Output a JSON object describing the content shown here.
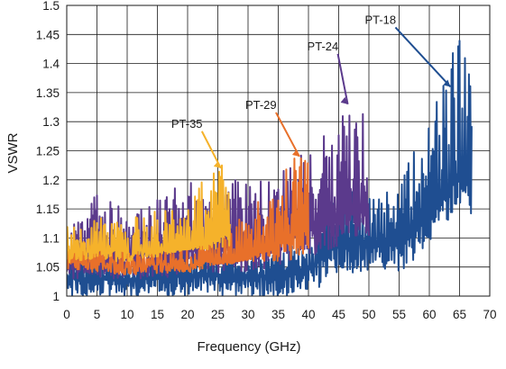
{
  "chart_data": {
    "type": "line",
    "title": "",
    "xlabel": "Frequency (GHz)",
    "ylabel": "VSWR",
    "xlim": [
      0,
      70
    ],
    "ylim": [
      1,
      1.5
    ],
    "x_ticks": [
      0,
      5,
      10,
      15,
      20,
      25,
      30,
      35,
      40,
      45,
      50,
      55,
      60,
      65,
      70
    ],
    "y_ticks": [
      1,
      1.05,
      1.1,
      1.15,
      1.2,
      1.25,
      1.3,
      1.35,
      1.4,
      1.45,
      1.5
    ],
    "y_tick_labels": [
      "1",
      "1.05",
      "1.1",
      "1.15",
      "1.2",
      "1.25",
      "1.3",
      "1.35",
      "1.4",
      "1.45",
      "1.5"
    ],
    "grid": true,
    "legend": "none",
    "series": [
      {
        "name": "PT-18",
        "color": "#1f4e91",
        "x_range": [
          0,
          67
        ],
        "vswr_min_approx": 1.0,
        "vswr_max_approx": 1.45,
        "sample_points": [
          [
            0,
            1.07
          ],
          [
            10,
            1.06
          ],
          [
            20,
            1.08
          ],
          [
            30,
            1.07
          ],
          [
            40,
            1.1
          ],
          [
            45,
            1.2
          ],
          [
            50,
            1.2
          ],
          [
            55,
            1.2
          ],
          [
            60,
            1.3
          ],
          [
            63,
            1.4
          ],
          [
            65,
            1.45
          ],
          [
            67,
            1.42
          ]
        ]
      },
      {
        "name": "PT-24",
        "color": "#5b3a8c",
        "x_range": [
          0,
          50
        ],
        "vswr_min_approx": 1.03,
        "vswr_max_approx": 1.35,
        "sample_points": [
          [
            0,
            1.12
          ],
          [
            5,
            1.18
          ],
          [
            10,
            1.15
          ],
          [
            20,
            1.2
          ],
          [
            30,
            1.2
          ],
          [
            40,
            1.25
          ],
          [
            45,
            1.3
          ],
          [
            47,
            1.34
          ],
          [
            49,
            1.32
          ]
        ]
      },
      {
        "name": "PT-29",
        "color": "#e8702a",
        "x_range": [
          0,
          40
        ],
        "vswr_min_approx": 1.06,
        "vswr_max_approx": 1.25,
        "sample_points": [
          [
            0,
            1.1
          ],
          [
            10,
            1.08
          ],
          [
            20,
            1.09
          ],
          [
            27,
            1.12
          ],
          [
            30,
            1.15
          ],
          [
            35,
            1.2
          ],
          [
            38,
            1.25
          ]
        ]
      },
      {
        "name": "PT-35",
        "color": "#f5b22b",
        "x_range": [
          0,
          27
        ],
        "vswr_min_approx": 1.08,
        "vswr_max_approx": 1.25,
        "sample_points": [
          [
            0,
            1.12
          ],
          [
            5,
            1.14
          ],
          [
            10,
            1.13
          ],
          [
            15,
            1.15
          ],
          [
            20,
            1.18
          ],
          [
            25,
            1.22
          ],
          [
            27,
            1.25
          ]
        ]
      }
    ],
    "annotations": [
      {
        "text": "PT-18",
        "color": "#1f4e91",
        "arrow_to": [
          63.5,
          1.36
        ]
      },
      {
        "text": "PT-24",
        "color": "#5b3a8c",
        "arrow_to": [
          46.5,
          1.33
        ]
      },
      {
        "text": "PT-29",
        "color": "#e8702a",
        "arrow_to": [
          38.5,
          1.24
        ]
      },
      {
        "text": "PT-35",
        "color": "#f5b22b",
        "arrow_to": [
          25.5,
          1.22
        ]
      }
    ]
  }
}
